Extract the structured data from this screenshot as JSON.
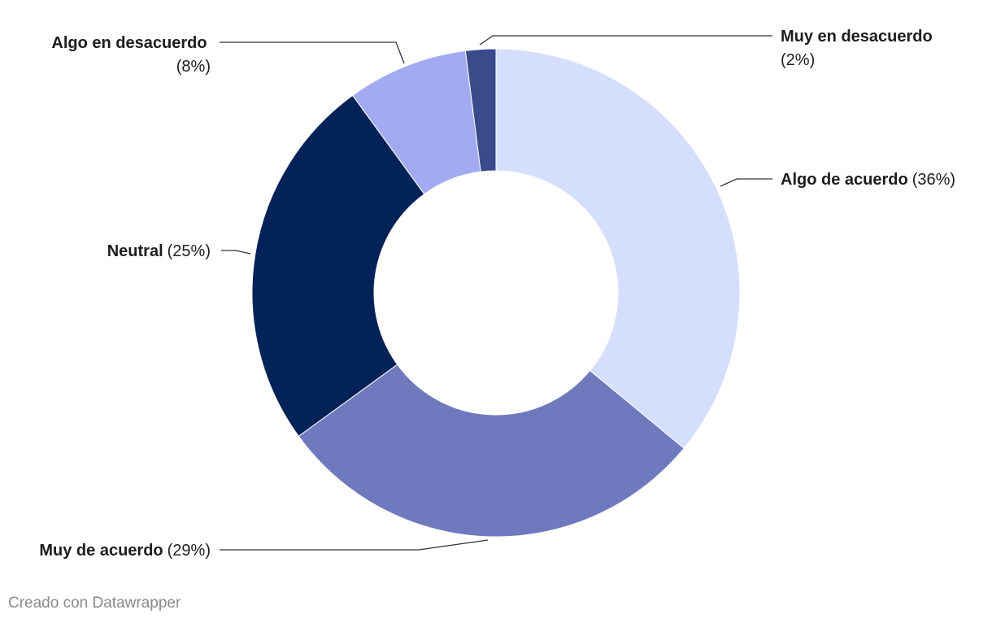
{
  "chart_data": {
    "type": "pie",
    "variant": "donut",
    "slices": [
      {
        "label": "Algo de acuerdo",
        "pct_label": "(36%)",
        "value": 36,
        "color": "#d5defd"
      },
      {
        "label": "Muy de acuerdo",
        "pct_label": "(29%)",
        "value": 29,
        "color": "#6f79bd"
      },
      {
        "label": "Neutral",
        "pct_label": "(25%)",
        "value": 25,
        "color": "#032257"
      },
      {
        "label": "Algo en desacuerdo",
        "pct_label": "(8%)",
        "value": 8,
        "color": "#a2aaf2"
      },
      {
        "label": "Muy en desacuerdo",
        "pct_label": "(2%)",
        "value": 2,
        "color": "#3a4a8b"
      }
    ]
  },
  "footer": {
    "credit": "Creado con Datawrapper"
  }
}
